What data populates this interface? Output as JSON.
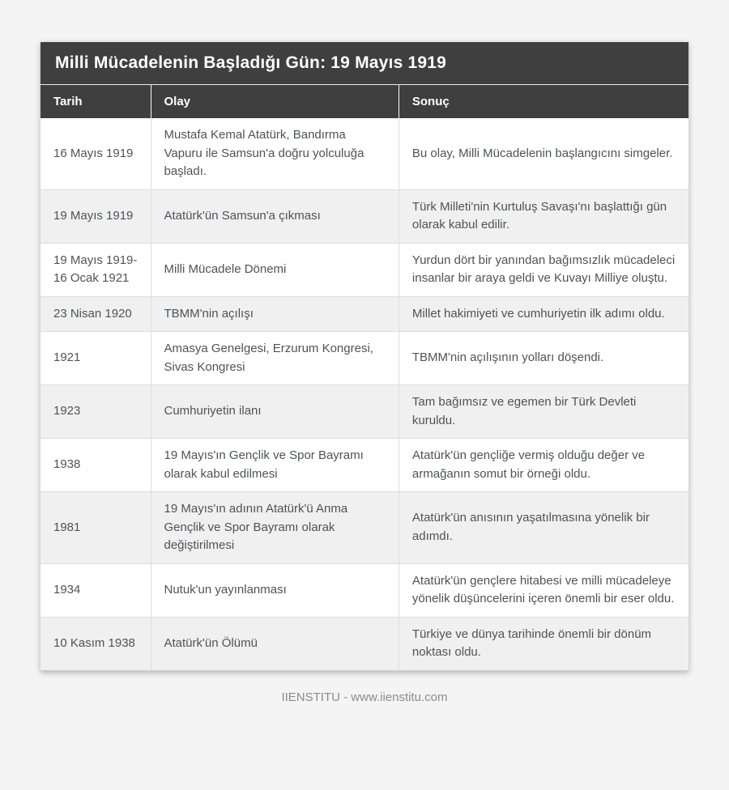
{
  "page": {
    "title": "Milli Mücadelenin Başladığı Gün: 19 Mayıs 1919",
    "footer": "IIENSTITU - www.iienstitu.com"
  },
  "table": {
    "columns": [
      "Tarih",
      "Olay",
      "Sonuç"
    ],
    "rows": [
      {
        "tarih": "16 Mayıs 1919",
        "olay": "Mustafa Kemal Atatürk, Bandırma Vapuru ile Samsun'a doğru yolculuğa başladı.",
        "sonuc": "Bu olay, Milli Mücadelenin başlangıcını simgeler."
      },
      {
        "tarih": "19 Mayıs 1919",
        "olay": "Atatürk'ün Samsun'a çıkması",
        "sonuc": "Türk Milleti'nin Kurtuluş Savaşı'nı başlattığı gün olarak kabul edilir."
      },
      {
        "tarih": "19 Mayıs 1919-16 Ocak 1921",
        "olay": "Milli Mücadele Dönemi",
        "sonuc": "Yurdun dört bir yanından bağımsızlık mücadeleci insanlar bir araya geldi ve Kuvayı Milliye oluştu."
      },
      {
        "tarih": "23 Nisan 1920",
        "olay": "TBMM'nin açılışı",
        "sonuc": "Millet hakimiyeti ve cumhuriyetin ilk adımı oldu."
      },
      {
        "tarih": "1921",
        "olay": "Amasya Genelgesi, Erzurum Kongresi, Sivas Kongresi",
        "sonuc": "TBMM'nin açılışının yolları döşendi."
      },
      {
        "tarih": "1923",
        "olay": "Cumhuriyetin ilanı",
        "sonuc": "Tam bağımsız ve egemen bir Türk Devleti kuruldu."
      },
      {
        "tarih": "1938",
        "olay": "19 Mayıs'ın Gençlik ve Spor Bayramı olarak kabul edilmesi",
        "sonuc": "Atatürk'ün gençliğe vermiş olduğu değer ve armağanın somut bir örneği oldu."
      },
      {
        "tarih": "1981",
        "olay": "19 Mayıs'ın adının Atatürk'ü Anma Gençlik ve Spor Bayramı olarak değiştirilmesi",
        "sonuc": "Atatürk'ün anısının yaşatılmasına yönelik bir adımdı."
      },
      {
        "tarih": "1934",
        "olay": "Nutuk'un yayınlanması",
        "sonuc": "Atatürk'ün gençlere hitabesi ve milli mücadeleye yönelik düşüncelerini içeren önemli bir eser oldu."
      },
      {
        "tarih": "10 Kasım 1938",
        "olay": "Atatürk'ün Ölümü",
        "sonuc": "Türkiye ve dünya tarihinde önemli bir dönüm noktası oldu."
      }
    ]
  },
  "colors": {
    "header_bg": "#3f3f3f",
    "header_text": "#ffffff",
    "row_alt_bg": "#f0f0f0",
    "page_bg": "#f4f4f4",
    "body_text": "#4e5357",
    "cell_border": "#dddddd",
    "footer_text": "#8c8c8c"
  }
}
